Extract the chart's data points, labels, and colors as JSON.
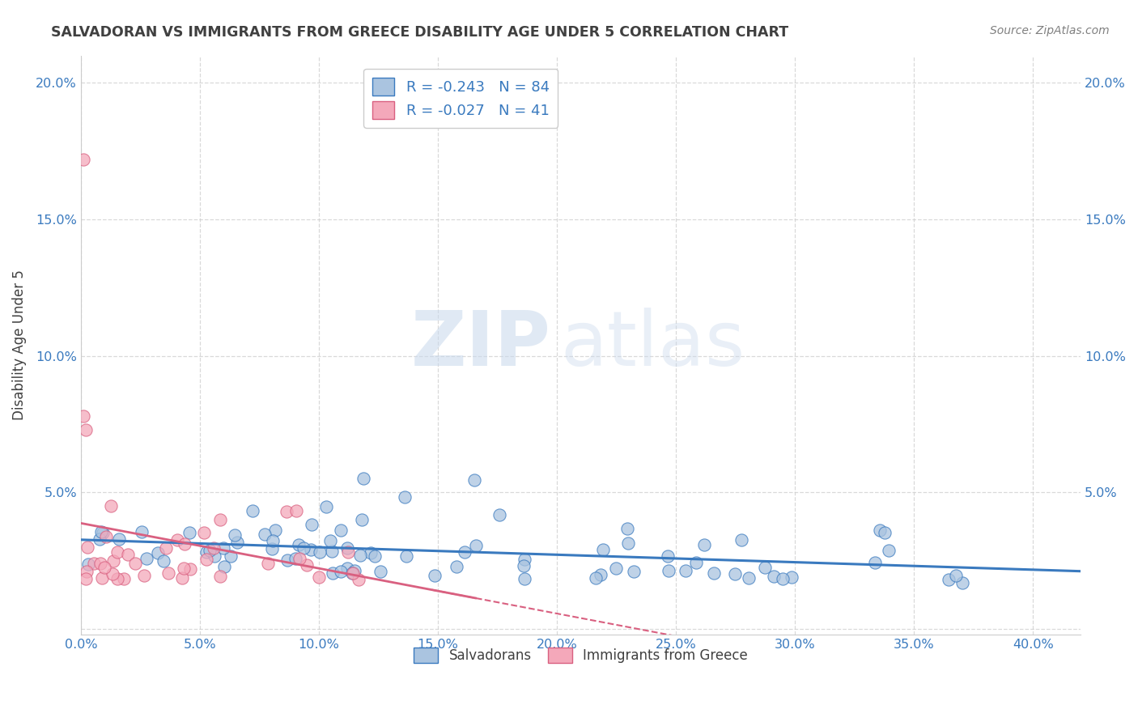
{
  "title": "SALVADORAN VS IMMIGRANTS FROM GREECE DISABILITY AGE UNDER 5 CORRELATION CHART",
  "source": "Source: ZipAtlas.com",
  "ylabel": "Disability Age Under 5",
  "xlim": [
    0.0,
    0.42
  ],
  "ylim": [
    -0.002,
    0.21
  ],
  "xticks": [
    0.0,
    0.05,
    0.1,
    0.15,
    0.2,
    0.25,
    0.3,
    0.35,
    0.4
  ],
  "yticks": [
    0.0,
    0.05,
    0.1,
    0.15,
    0.2
  ],
  "R_salvadoran": -0.243,
  "N_salvadoran": 84,
  "R_greece": -0.027,
  "N_greece": 41,
  "color_salvadoran": "#aac4e0",
  "color_greece": "#f4a8ba",
  "line_color_salvadoran": "#3a7abf",
  "line_color_greece": "#d96080",
  "watermark_zip": "ZIP",
  "watermark_atlas": "atlas",
  "legend_salvadoran": "Salvadorans",
  "legend_greece": "Immigrants from Greece",
  "background_color": "#ffffff",
  "grid_color": "#d0d0d0",
  "title_color": "#404040",
  "source_color": "#808080",
  "axis_label_color": "#404040",
  "tick_color": "#3a7abf"
}
